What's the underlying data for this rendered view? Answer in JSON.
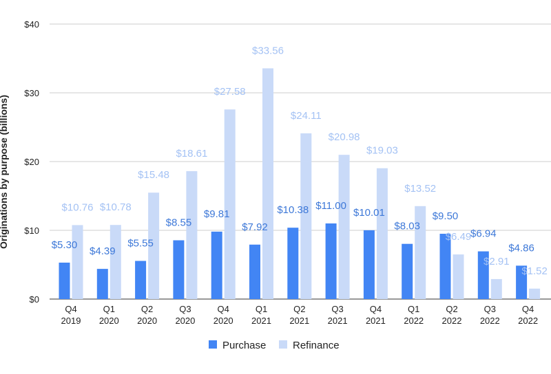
{
  "chart_data": {
    "type": "bar",
    "title": "",
    "xlabel": "",
    "ylabel": "Originations by purpose (billions)",
    "ylim": [
      0,
      40
    ],
    "y_ticks": [
      "$0",
      "$10",
      "$20",
      "$30",
      "$40"
    ],
    "y_tick_values": [
      0,
      10,
      20,
      30,
      40
    ],
    "categories": [
      [
        "Q4",
        "2019"
      ],
      [
        "Q1",
        "2020"
      ],
      [
        "Q2",
        "2020"
      ],
      [
        "Q3",
        "2020"
      ],
      [
        "Q4",
        "2020"
      ],
      [
        "Q1",
        "2021"
      ],
      [
        "Q2",
        "2021"
      ],
      [
        "Q3",
        "2021"
      ],
      [
        "Q4",
        "2021"
      ],
      [
        "Q1",
        "2022"
      ],
      [
        "Q2",
        "2022"
      ],
      [
        "Q3",
        "2022"
      ],
      [
        "Q4",
        "2022"
      ]
    ],
    "series": [
      {
        "name": "Purchase",
        "color": "#4285f4",
        "label_color": "#3d78d8",
        "values": [
          5.3,
          4.39,
          5.55,
          8.55,
          9.81,
          7.92,
          10.38,
          11.0,
          10.01,
          8.03,
          9.5,
          6.94,
          4.86
        ],
        "labels": [
          "$5.30",
          "$4.39",
          "$5.55",
          "$8.55",
          "$9.81",
          "$7.92",
          "$10.38",
          "$11.00",
          "$10.01",
          "$8.03",
          "$9.50",
          "$6.94",
          "$4.86"
        ]
      },
      {
        "name": "Refinance",
        "color": "#c9daf8",
        "label_color": "#a4c2f4",
        "values": [
          10.76,
          10.78,
          15.48,
          18.61,
          27.58,
          33.56,
          24.11,
          20.98,
          19.03,
          13.52,
          6.49,
          2.91,
          1.52
        ],
        "labels": [
          "$10.76",
          "$10.78",
          "$15.48",
          "$18.61",
          "$27.58",
          "$33.56",
          "$24.11",
          "$20.98",
          "$19.03",
          "$13.52",
          "$6.49",
          "$2.91",
          "$1.52"
        ]
      }
    ],
    "grid": true,
    "legend": "bottom"
  }
}
